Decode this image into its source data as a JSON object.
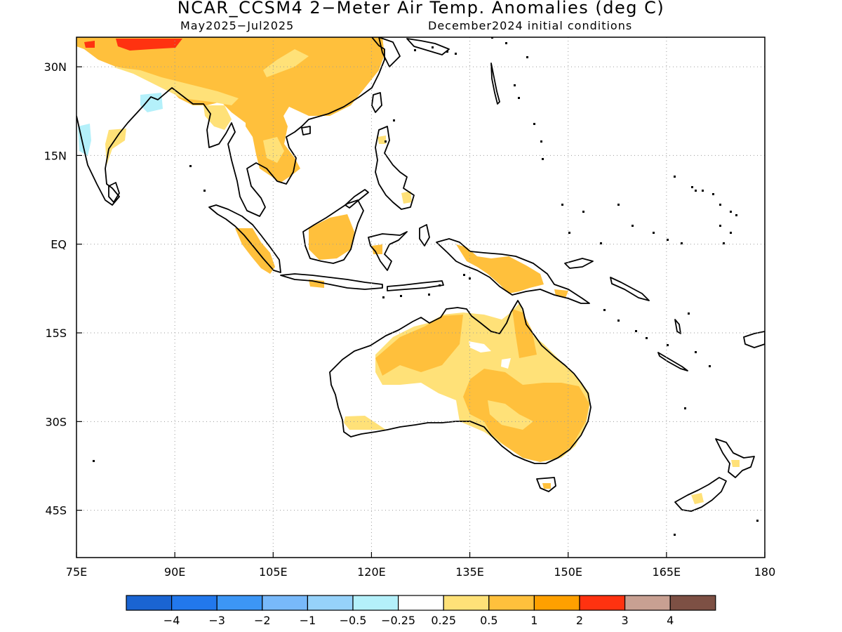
{
  "title": "NCAR_CCSM4 2−Meter Air Temp. Anomalies (deg C)",
  "subtitle_left": "May2025−Jul2025",
  "subtitle_right": "December2024 initial conditions",
  "map": {
    "lon_range": [
      75,
      180
    ],
    "lat_range": [
      -53,
      35
    ],
    "lon_ticks": [
      {
        "value": 75,
        "label": "75E"
      },
      {
        "value": 90,
        "label": "90E"
      },
      {
        "value": 105,
        "label": "105E"
      },
      {
        "value": 120,
        "label": "120E"
      },
      {
        "value": 135,
        "label": "135E"
      },
      {
        "value": 150,
        "label": "150E"
      },
      {
        "value": 165,
        "label": "165E"
      },
      {
        "value": 180,
        "label": "180"
      }
    ],
    "lat_ticks": [
      {
        "value": 30,
        "label": "30N"
      },
      {
        "value": 15,
        "label": "15N"
      },
      {
        "value": 0,
        "label": "EQ"
      },
      {
        "value": -15,
        "label": "15S"
      },
      {
        "value": -30,
        "label": "30S"
      },
      {
        "value": -45,
        "label": "45S"
      }
    ],
    "grid": "dotted"
  },
  "legend": {
    "colors": [
      "#1a64d2",
      "#2278ec",
      "#3c96f5",
      "#78b9fa",
      "#96d2fa",
      "#b4f0fa",
      "#ffffff",
      "#ffe178",
      "#ffc03c",
      "#ffa000",
      "#ff3210",
      "#c8a092",
      "#7d5044"
    ],
    "labels": [
      "−4",
      "−3",
      "−2",
      "−1",
      "−0.5",
      "−0.25",
      "0.25",
      "0.5",
      "1",
      "2",
      "3",
      "4"
    ]
  },
  "anomaly_regions": [
    {
      "region": "Tibet / Himalaya",
      "level": "2"
    },
    {
      "region": "China",
      "level": "1"
    },
    {
      "region": "Bay of Bengal coast",
      "level": "-0.5"
    },
    {
      "region": "Western India",
      "level": "-0.5"
    },
    {
      "region": "Borneo",
      "level": "1"
    },
    {
      "region": "Sumatra",
      "level": "1"
    },
    {
      "region": "New Guinea",
      "level": "1"
    },
    {
      "region": "Australia north",
      "level": "1"
    },
    {
      "region": "Australia east",
      "level": "1"
    },
    {
      "region": "Australia interior",
      "level": "0.5"
    },
    {
      "region": "New Zealand",
      "level": "0.5"
    }
  ]
}
